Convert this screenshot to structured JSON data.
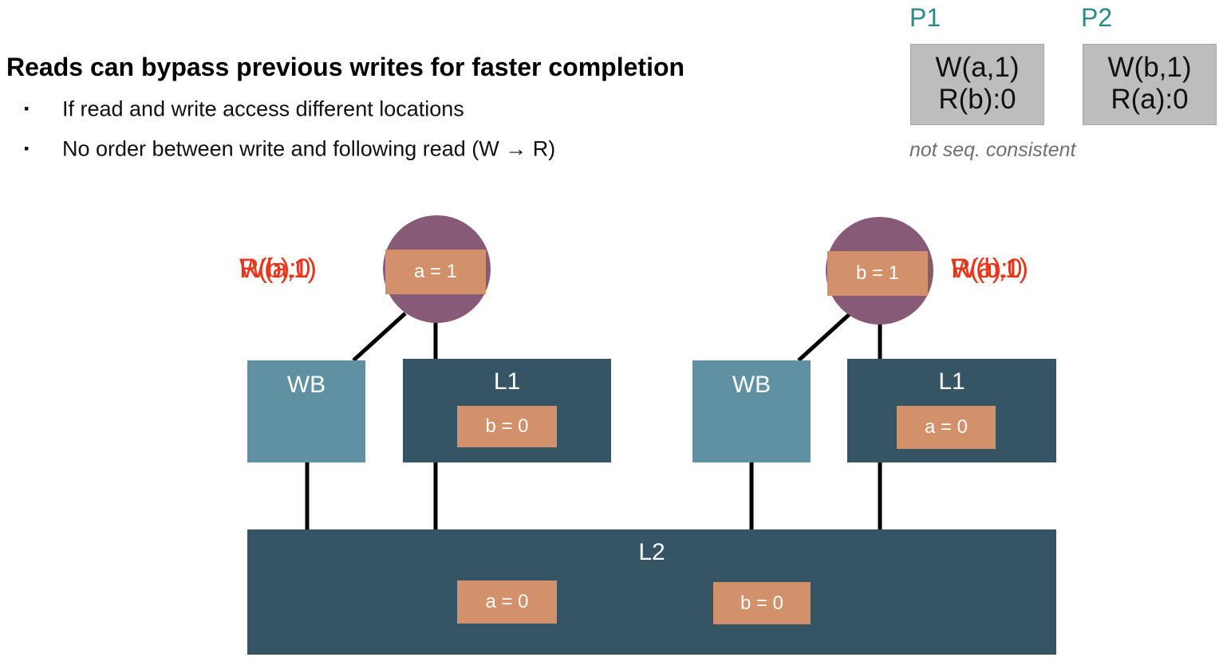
{
  "headline": "Reads can bypass previous writes for faster completion",
  "bullets": [
    {
      "marker": "▪",
      "text": "If read and write access different locations"
    },
    {
      "marker": "▪",
      "text": "No order between write and following read (W → R)"
    }
  ],
  "traces": [
    {
      "proc": "P1",
      "lines": [
        "W(a,1)",
        "R(b):0"
      ]
    },
    {
      "proc": "P2",
      "lines": [
        "W(b,1)",
        "R(a):0"
      ]
    }
  ],
  "trace_note": "not seq. consistent",
  "diagram": {
    "p1_requests": [
      "W(a,1)",
      "R(b):0"
    ],
    "p2_requests": [
      "W(b,1)",
      "R(a):0"
    ],
    "p1_core_value": "a = 1",
    "p2_core_value": "b = 1",
    "wb_label": "WB",
    "l1_label": "L1",
    "l1_p1_value": "b = 0",
    "l1_p2_value": "a = 0",
    "l2_label": "L2",
    "l2_values": [
      "a = 0",
      "b = 0"
    ]
  },
  "colors": {
    "processor": "#875b77",
    "write_buffer": "#5f91a2",
    "cache": "#365564",
    "value": "#d2906b",
    "request": "#e8361c",
    "proc_label": "#2a8a8a"
  }
}
